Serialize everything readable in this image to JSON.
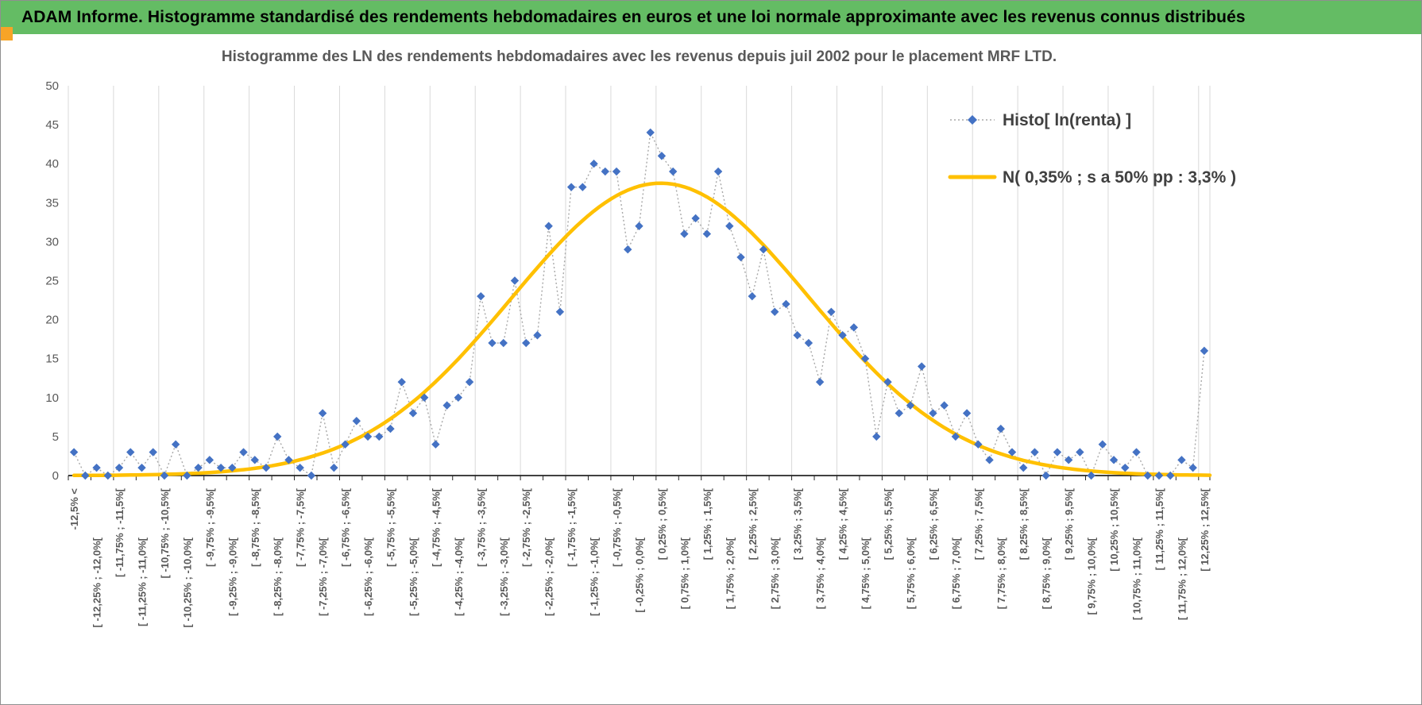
{
  "header": {
    "title": "ADAM Informe. Histogramme standardisé des rendements hebdomadaires en euros et une loi normale approximante avec les revenus connus distribués",
    "bg_color": "#64BC64",
    "accent_color": "#F7A427"
  },
  "chart_data": {
    "type": "line",
    "title": "Histogramme des LN des rendements hebdomadaires avec les revenus depuis juil 2002 pour le placement MRF LTD.",
    "n_bins": 101,
    "bin_width_pct": 0.25,
    "ylim": [
      0,
      50
    ],
    "y_ticks": [
      0,
      5,
      10,
      15,
      20,
      25,
      30,
      35,
      40,
      45,
      50
    ],
    "label_interval": 2,
    "gridline_interval": 4,
    "legend_position": "top-right",
    "colors": {
      "marker": "#4472C4",
      "connector": "#A8A8A8",
      "curve": "#FFC000",
      "grid": "#D9D9D9",
      "axis": "#000000",
      "tick_text": "#595959",
      "legend_text": "#404040"
    },
    "tick_labels": [
      "-12,5% <",
      "[ -12,25% ; -12,0%[",
      "[ -11,75% ; -11,5%[",
      "[ -11,25% ; -11,0%[",
      "[ -10,75% ; -10,5%[",
      "[ -10,25% ; -10,0%[",
      "[ -9,75% ; -9,5%[",
      "[ -9,25% ; -9,0%[",
      "[ -8,75% ; -8,5%[",
      "[ -8,25% ; -8,0%[",
      "[ -7,75% ; -7,5%[",
      "[ -7,25% ; -7,0%[",
      "[ -6,75% ; -6,5%[",
      "[ -6,25% ; -6,0%[",
      "[ -5,75% ; -5,5%[",
      "[ -5,25% ; -5,0%[",
      "[ -4,75% ; -4,5%[",
      "[ -4,25% ; -4,0%[",
      "[ -3,75% ; -3,5%[",
      "[ -3,25% ; -3,0%[",
      "[ -2,75% ; -2,5%[",
      "[ -2,25% ; -2,0%[",
      "[ -1,75% ; -1,5%[",
      "[ -1,25% ; -1,0%[",
      "[ -0,75% ; -0,5%[",
      "[ -0,25% ; 0,0%[",
      "[ 0,25% ; 0,5%[",
      "[ 0,75% ; 1,0%[",
      "[ 1,25% ; 1,5%[",
      "[ 1,75% ; 2,0%[",
      "[ 2,25% ; 2,5%[",
      "[ 2,75% ; 3,0%[",
      "[ 3,25% ; 3,5%[",
      "[ 3,75% ; 4,0%[",
      "[ 4,25% ; 4,5%[",
      "[ 4,75% ; 5,0%[",
      "[ 5,25% ; 5,5%[",
      "[ 5,75% ; 6,0%[",
      "[ 6,25% ; 6,5%[",
      "[ 6,75% ; 7,0%[",
      "[ 7,25% ; 7,5%[",
      "[ 7,75% ; 8,0%[",
      "[ 8,25% ; 8,5%[",
      "[ 8,75% ; 9,0%[",
      "[ 9,25% ; 9,5%[",
      "[ 9,75% ; 10,0%[",
      "[ 10,25% ; 10,5%[",
      "[ 10,75% ; 11,0%[",
      "[ 11,25% ; 11,5%[",
      "[ 11,75% ; 12,0%[",
      "[ 12,25% ; 12,5%["
    ],
    "series": [
      {
        "name": "Histo[ ln(renta) ]",
        "style": "scatter-dotted",
        "marker": "diamond",
        "values": [
          3,
          0,
          1,
          0,
          1,
          3,
          1,
          3,
          0,
          4,
          0,
          1,
          2,
          1,
          1,
          3,
          2,
          1,
          5,
          2,
          1,
          0,
          8,
          1,
          4,
          7,
          5,
          5,
          6,
          12,
          8,
          10,
          4,
          9,
          10,
          12,
          23,
          17,
          17,
          25,
          17,
          18,
          32,
          21,
          37,
          37,
          40,
          39,
          39,
          29,
          32,
          44,
          41,
          39,
          31,
          33,
          31,
          39,
          32,
          28,
          23,
          29,
          21,
          22,
          18,
          17,
          12,
          21,
          18,
          19,
          15,
          5,
          12,
          8,
          9,
          14,
          8,
          9,
          5,
          8,
          4,
          2,
          6,
          3,
          1,
          3,
          0,
          3,
          2,
          3,
          0,
          4,
          2,
          1,
          3,
          0,
          0,
          0,
          2,
          1,
          16
        ]
      },
      {
        "name": "N( 0,35% ; s a 50% pp : 3,3% )",
        "style": "smooth-line",
        "normal": {
          "mean_pct": 0.35,
          "sd_pct": 3.3,
          "peak": 37.5
        }
      }
    ]
  }
}
